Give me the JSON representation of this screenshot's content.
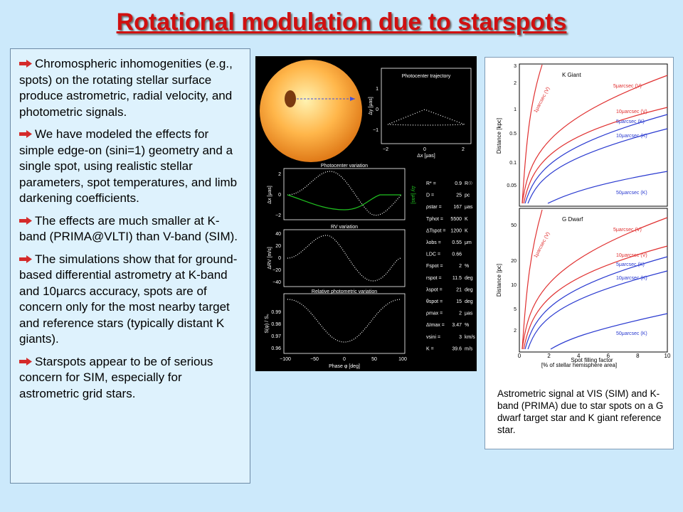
{
  "title": "Rotational modulation due to starspots",
  "bullets": [
    "Chromospheric inhomogenities (e.g., spots) on the rotating stellar surface produce astrometric, radial velocity, and photometric signals.",
    "We have modeled the effects for simple edge-on (sini=1) geometry and a single spot, using realistic stellar parameters, spot temperatures, and limb darkening coefficients.",
    "The effects are much smaller at K-band (PRIMA@VLTI) than V-band (SIM).",
    "The simulations show that for ground-based differential astrometry at K-band and 10μarcs accuracy, spots are of concern only for the most nearby target and reference stars (typically distant K giants).",
    "Starspots appear to be of serious concern for SIM, especially for astrometric grid stars."
  ],
  "colors": {
    "title": "#d01010",
    "arrow": "#d42a2a",
    "background": "#cce9fb",
    "textbox": "#def2fd"
  },
  "left_figure": {
    "trajectory": {
      "title": "Photocenter trajectory",
      "xlabel": "Δx [μas]",
      "ylabel": "Δy [μas]",
      "xticks": [
        "−2",
        "0",
        "2"
      ],
      "yticks": [
        "1",
        "0",
        "−1"
      ]
    },
    "photocenter": {
      "title": "Photocenter variation",
      "ylabel_left": "Δx [μas]",
      "ylabel_right": "Δy [μas]",
      "yticks": [
        "2",
        "0",
        "−2"
      ]
    },
    "rv": {
      "title": "RV variation",
      "ylabel": "ΔRV [m/s]",
      "yticks": [
        "40",
        "20",
        "0",
        "−20",
        "−40"
      ]
    },
    "phot": {
      "title": "Relative photometric variation",
      "ylabel": "S(φ) / S₀",
      "yticks": [
        "0.99",
        "0.98",
        "0.97",
        "0.96"
      ],
      "xlabel": "Phase φ [deg]",
      "xticks": [
        "−100",
        "−50",
        "0",
        "50",
        "100"
      ]
    },
    "params": [
      [
        "R* =",
        "0.9",
        "R☉"
      ],
      [
        "D =",
        "25",
        "pc"
      ],
      [
        "ρstar =",
        "167",
        "μas"
      ],
      [
        "Tphot =",
        "5500",
        "K"
      ],
      [
        "ΔTspot =",
        "1200",
        "K"
      ],
      [
        "λobs =",
        "0.55",
        "μm"
      ],
      [
        "LDC =",
        "0.66",
        ""
      ],
      [
        "Fspot =",
        "2",
        "%"
      ],
      [
        "rspot =",
        "11.5",
        "deg"
      ],
      [
        "λspot =",
        "21",
        "deg"
      ],
      [
        "θspot =",
        "15",
        "deg"
      ],
      [
        "ρmax =",
        "2",
        "μas"
      ],
      [
        "ΔImax =",
        "3.47",
        "%"
      ],
      [
        "vsini =",
        "3",
        "km/s"
      ],
      [
        "K =",
        "39.6",
        "m/s"
      ]
    ]
  },
  "right_figure": {
    "top_label": "K Giant",
    "bottom_label": "G Dwarf",
    "ylabel_top": "Distance [kpc]",
    "ylabel_bottom": "Distance [pc]",
    "xlabel_1": "Spot filling factor",
    "xlabel_2": "[% of stellar hemisphere area]",
    "top_yticks": [
      "3",
      "2",
      "1",
      "0.5",
      "0.1",
      "0.05"
    ],
    "bottom_yticks": [
      "50",
      "20",
      "10",
      "5",
      "2"
    ],
    "xticks": [
      "0",
      "2",
      "4",
      "6",
      "8",
      "10"
    ],
    "top_curves": [
      {
        "label": "1μarcsec (V)",
        "color": "#e03030"
      },
      {
        "label": "5μarcsec (V)",
        "color": "#e03030"
      },
      {
        "label": "10μarcsec (V)",
        "color": "#e03030"
      },
      {
        "label": "5μarcsec (K)",
        "color": "#2a3ad0"
      },
      {
        "label": "10μarcsec (K)",
        "color": "#2a3ad0"
      },
      {
        "label": "50μarcsec (K)",
        "color": "#2a3ad0"
      }
    ],
    "bottom_curves": [
      {
        "label": "1μarcsec (V)",
        "color": "#e03030"
      },
      {
        "label": "5μarcsec (V)",
        "color": "#e03030"
      },
      {
        "label": "10μarcsec (V)",
        "color": "#e03030"
      },
      {
        "label": "5μarcsec (K)",
        "color": "#2a3ad0"
      },
      {
        "label": "10μarcsec (K)",
        "color": "#2a3ad0"
      },
      {
        "label": "50μarcsec (K)",
        "color": "#2a3ad0"
      }
    ]
  },
  "caption": "Astrometric signal at VIS (SIM) and K-band (PRIMA) due to star spots on a G dwarf target star and K giant reference star."
}
